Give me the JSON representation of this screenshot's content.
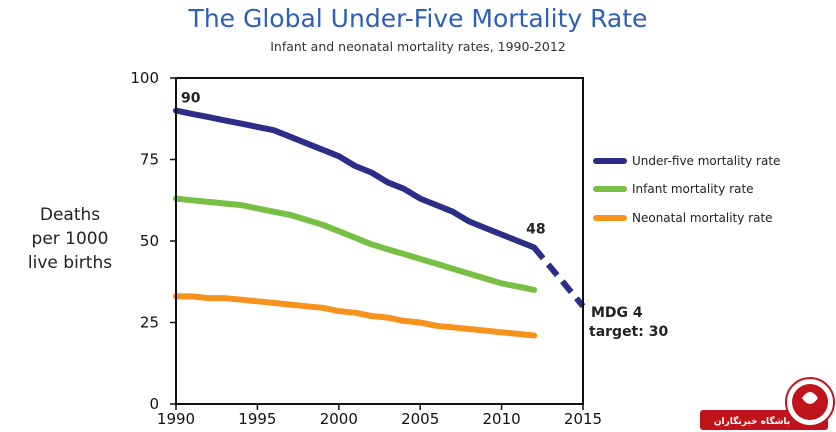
{
  "chart_data": {
    "type": "line",
    "title": "The Global Under-Five Mortality Rate",
    "subtitle": "Infant and neonatal mortality rates, 1990-2012",
    "ylabel": [
      "Deaths",
      "per 1000",
      "live births"
    ],
    "xlabel": "",
    "xlim": [
      1990,
      2015
    ],
    "ylim": [
      0,
      100
    ],
    "x_ticks": [
      "1990",
      "1995",
      "2000",
      "2005",
      "2010",
      "2015"
    ],
    "y_ticks": [
      "0",
      "25",
      "50",
      "75",
      "100"
    ],
    "grid": false,
    "legend_position": "right",
    "series": [
      {
        "name": "Under-five mortality rate",
        "color": "#2b2d86",
        "x": [
          1990,
          1991,
          1992,
          1993,
          1994,
          1995,
          1996,
          1997,
          1998,
          1999,
          2000,
          2001,
          2002,
          2003,
          2004,
          2005,
          2006,
          2007,
          2008,
          2009,
          2010,
          2011,
          2012
        ],
        "values": [
          90,
          89,
          88,
          87,
          86,
          85,
          84,
          82,
          80,
          78,
          76,
          73,
          71,
          68,
          66,
          63,
          61,
          59,
          56,
          54,
          52,
          50,
          48
        ]
      },
      {
        "name": "Infant mortality rate",
        "color": "#77c043",
        "x": [
          1990,
          1991,
          1992,
          1993,
          1994,
          1995,
          1996,
          1997,
          1998,
          1999,
          2000,
          2001,
          2002,
          2003,
          2004,
          2005,
          2006,
          2007,
          2008,
          2009,
          2010,
          2011,
          2012
        ],
        "values": [
          63,
          62.5,
          62,
          61.5,
          61,
          60,
          59,
          58,
          56.5,
          55,
          53,
          51,
          49,
          47.5,
          46,
          44.5,
          43,
          41.5,
          40,
          38.5,
          37,
          36,
          35
        ]
      },
      {
        "name": "Neonatal mortality rate",
        "color": "#f7931d",
        "x": [
          1990,
          1991,
          1992,
          1993,
          1994,
          1995,
          1996,
          1997,
          1998,
          1999,
          2000,
          2001,
          2002,
          2003,
          2004,
          2005,
          2006,
          2007,
          2008,
          2009,
          2010,
          2011,
          2012
        ],
        "values": [
          33,
          33,
          32.5,
          32.5,
          32,
          31.5,
          31,
          30.5,
          30,
          29.5,
          28.5,
          28,
          27,
          26.5,
          25.5,
          25,
          24,
          23.5,
          23,
          22.5,
          22,
          21.5,
          21
        ]
      }
    ],
    "target_projection": {
      "color": "#2b2d86",
      "style": "dashed",
      "x": [
        2012,
        2015
      ],
      "values": [
        48,
        30
      ]
    },
    "annotations": [
      {
        "text": "90",
        "x": 1990,
        "y": 90
      },
      {
        "text": "48",
        "x": 2012,
        "y": 48
      },
      {
        "text": "MDG 4",
        "x": 2015,
        "y": 30
      },
      {
        "text": "target: 30",
        "x": 2015,
        "y": 30
      }
    ]
  },
  "watermark": {
    "text": "باشگاه خبرنگاران",
    "color": "#c0141c"
  }
}
